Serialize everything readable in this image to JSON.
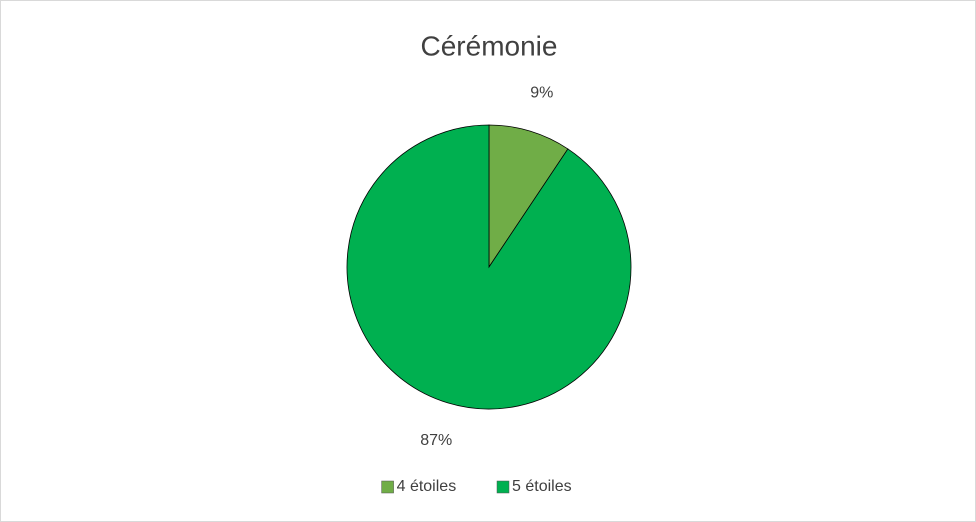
{
  "chart_data": {
    "type": "pie",
    "title": "Cérémonie",
    "categories": [
      "4 étoiles",
      "5 étoiles"
    ],
    "values": [
      9,
      87
    ],
    "value_labels": [
      "9%",
      "87%"
    ],
    "colors": [
      "#70ad47",
      "#00b050"
    ],
    "legend": "bottom"
  }
}
